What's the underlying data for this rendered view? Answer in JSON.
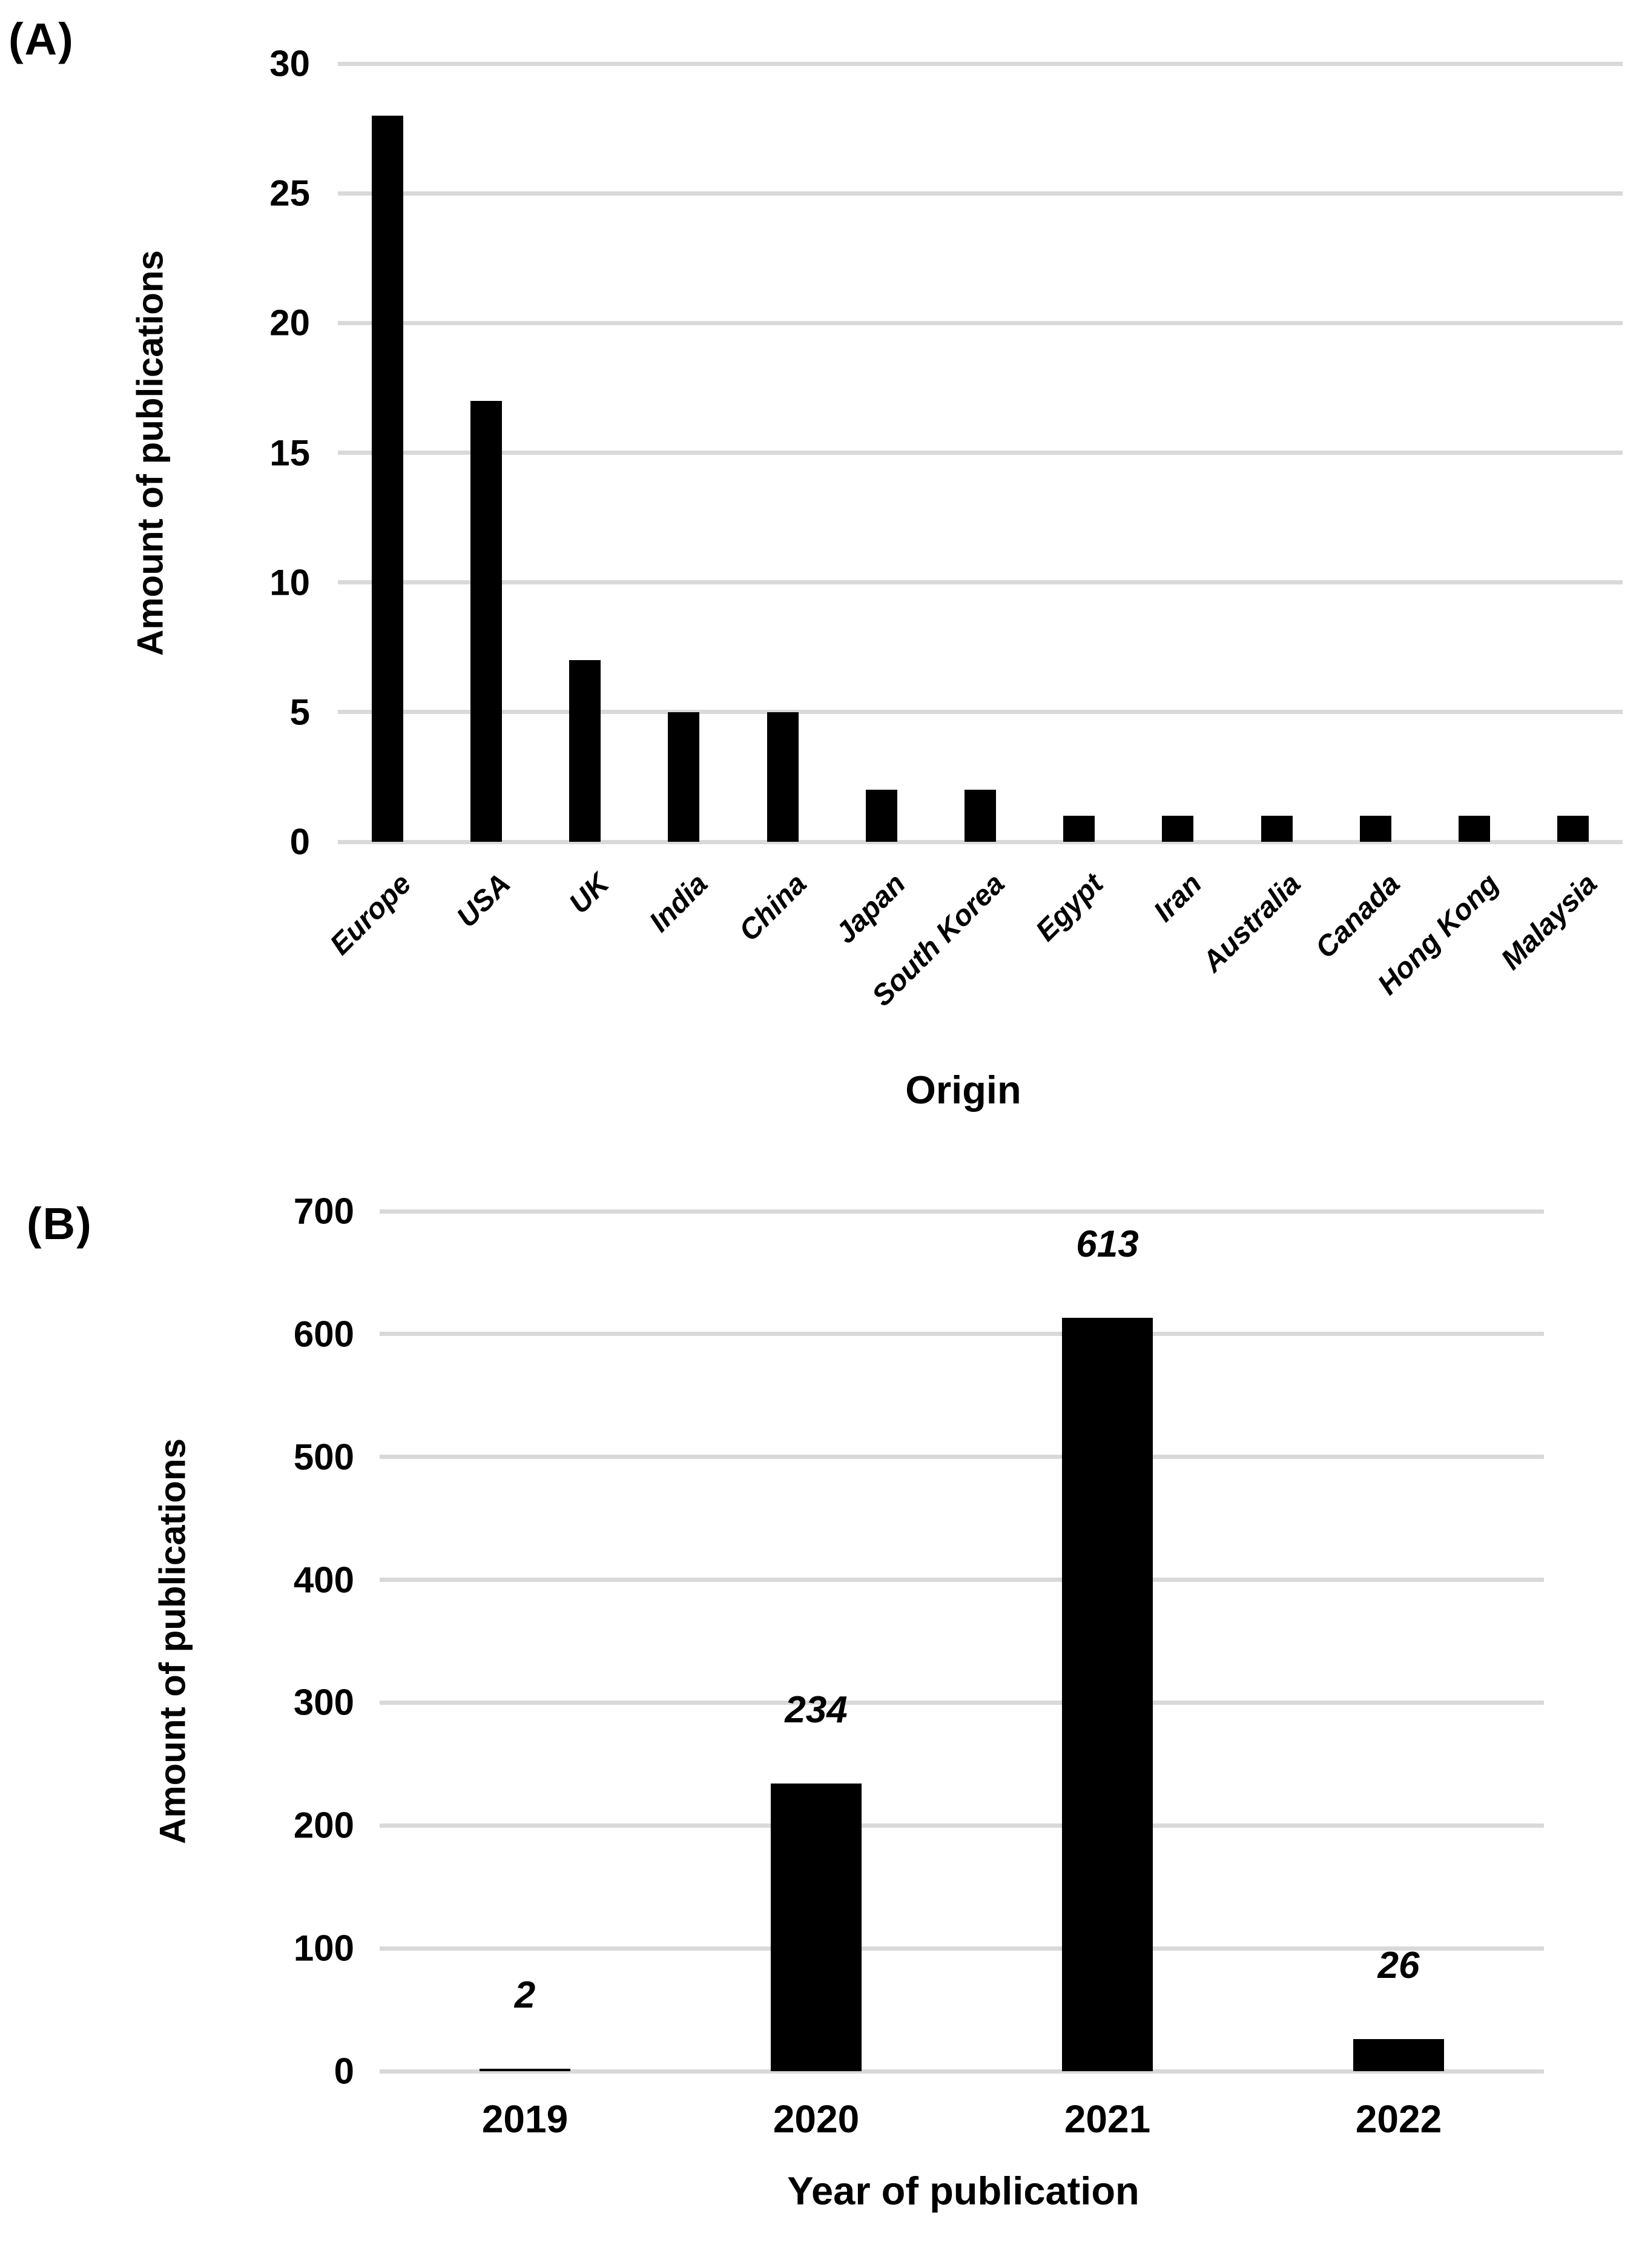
{
  "figure": {
    "background": "#ffffff",
    "bar_color": "#000000",
    "gridline_color": "#d9d9d9",
    "panels": [
      {
        "label": "(A)"
      },
      {
        "label": "(B)"
      }
    ]
  },
  "chart_data": [
    {
      "type": "bar",
      "panel": "A",
      "title": "",
      "categories": [
        "Europe",
        "USA",
        "UK",
        "India",
        "China",
        "Japan",
        "South Korea",
        "Egypt",
        "Iran",
        "Australia",
        "Canada",
        "Hong Kong",
        "Malaysia"
      ],
      "values": [
        28,
        17,
        7,
        5,
        5,
        2,
        2,
        1,
        1,
        1,
        1,
        1,
        1
      ],
      "xlabel": "Origin",
      "ylabel": "Amount of publications",
      "ylim": [
        0,
        30
      ],
      "yticks": [
        0,
        5,
        10,
        15,
        20,
        25,
        30
      ],
      "grid": true,
      "legend_position": "none",
      "bar_color": "#000000"
    },
    {
      "type": "bar",
      "panel": "B",
      "title": "",
      "categories": [
        "2019",
        "2020",
        "2021",
        "2022"
      ],
      "values": [
        2,
        234,
        613,
        26
      ],
      "data_labels": [
        "2",
        "234",
        "613",
        "26"
      ],
      "xlabel": "Year of publication",
      "ylabel": "Amount of publications",
      "ylim": [
        0,
        700
      ],
      "yticks": [
        0,
        100,
        200,
        300,
        400,
        500,
        600,
        700
      ],
      "grid": true,
      "legend_position": "none",
      "bar_color": "#000000"
    }
  ]
}
